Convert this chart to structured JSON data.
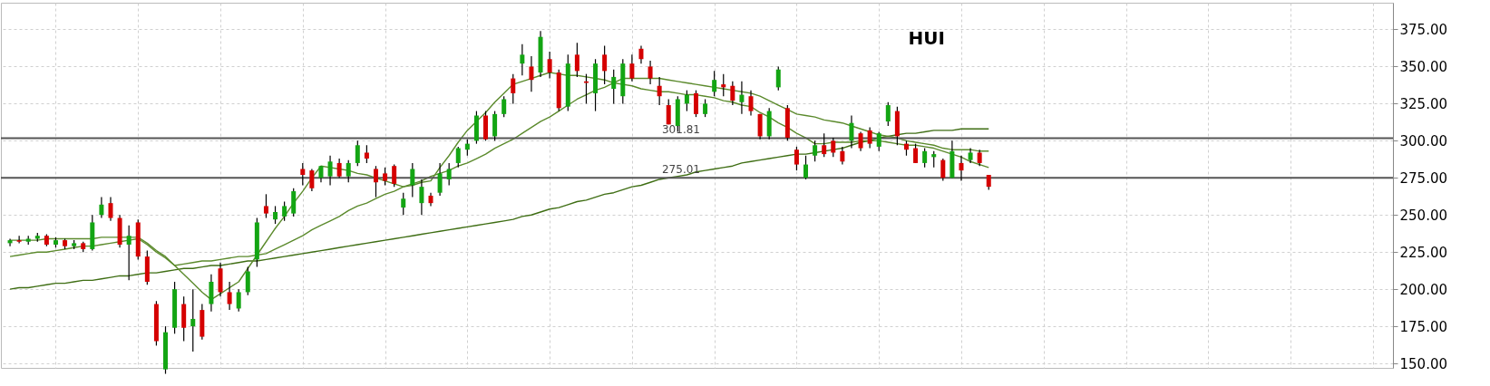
{
  "chart_data": {
    "type": "candlestick",
    "title": "HUI",
    "categories": [
      null,
      null,
      null,
      null,
      null,
      null,
      null,
      null,
      null,
      null,
      null,
      null,
      null,
      null,
      null,
      null,
      null,
      null,
      null,
      null,
      null,
      null,
      null,
      null,
      null,
      null,
      null,
      null,
      null,
      null,
      null,
      null,
      null,
      null,
      null,
      null,
      null,
      null,
      null,
      null,
      null,
      null,
      null,
      null,
      null,
      null,
      null,
      null,
      null,
      null,
      null,
      null,
      null,
      null,
      null,
      null,
      null,
      null,
      null,
      null,
      null,
      null,
      null,
      null,
      null,
      null,
      null,
      null,
      null,
      null,
      null,
      null,
      null,
      null,
      null,
      null,
      null,
      null,
      null,
      null,
      null,
      null,
      null,
      null,
      null,
      null,
      null,
      null,
      null,
      null,
      null,
      null,
      null,
      null,
      null,
      null,
      null,
      null,
      null,
      null,
      null,
      null,
      null,
      null,
      null,
      null,
      null,
      null
    ],
    "ohlc": [
      [
        231,
        234,
        229,
        233
      ],
      [
        233,
        236,
        231,
        232
      ],
      [
        232,
        236,
        230,
        234
      ],
      [
        234,
        238,
        232,
        236
      ],
      [
        236,
        237,
        229,
        230
      ],
      [
        230,
        235,
        228,
        233
      ],
      [
        233,
        234,
        227,
        229
      ],
      [
        229,
        233,
        227,
        231
      ],
      [
        231,
        232,
        225,
        227
      ],
      [
        227,
        250,
        226,
        245
      ],
      [
        250,
        262,
        248,
        257
      ],
      [
        258,
        262,
        246,
        248
      ],
      [
        248,
        250,
        228,
        230
      ],
      [
        230,
        243,
        206,
        236
      ],
      [
        245,
        247,
        220,
        222
      ],
      [
        222,
        226,
        203,
        205
      ],
      [
        190,
        192,
        162,
        165
      ],
      [
        146,
        175,
        143,
        171
      ],
      [
        174,
        205,
        170,
        200
      ],
      [
        190,
        195,
        165,
        174
      ],
      [
        175,
        200,
        158,
        180
      ],
      [
        186,
        190,
        166,
        168
      ],
      [
        190,
        210,
        185,
        205
      ],
      [
        214,
        218,
        195,
        198
      ],
      [
        198,
        205,
        186,
        190
      ],
      [
        187,
        200,
        185,
        198
      ],
      [
        198,
        215,
        196,
        212
      ],
      [
        220,
        248,
        215,
        245
      ],
      [
        256,
        264,
        248,
        251
      ],
      [
        247,
        256,
        244,
        252
      ],
      [
        249,
        259,
        246,
        256
      ],
      [
        251,
        268,
        249,
        266
      ],
      [
        281,
        285,
        270,
        277
      ],
      [
        280,
        281,
        266,
        268
      ],
      [
        275,
        283,
        272,
        283
      ],
      [
        276,
        290,
        270,
        286
      ],
      [
        285,
        288,
        275,
        276
      ],
      [
        276,
        287,
        272,
        285
      ],
      [
        285,
        300,
        283,
        297
      ],
      [
        292,
        297,
        285,
        288
      ],
      [
        281,
        283,
        262,
        272
      ],
      [
        278,
        282,
        270,
        273
      ],
      [
        283,
        284,
        269,
        271
      ],
      [
        255,
        265,
        250,
        261
      ],
      [
        270,
        285,
        262,
        281
      ],
      [
        258,
        274,
        250,
        269
      ],
      [
        263,
        265,
        256,
        258
      ],
      [
        265,
        285,
        263,
        278
      ],
      [
        274,
        285,
        270,
        281
      ],
      [
        285,
        296,
        282,
        295
      ],
      [
        294,
        301,
        290,
        298
      ],
      [
        300,
        320,
        298,
        317
      ],
      [
        317,
        320,
        300,
        301
      ],
      [
        303,
        320,
        300,
        318
      ],
      [
        318,
        330,
        316,
        328
      ],
      [
        342,
        345,
        325,
        332
      ],
      [
        352,
        365,
        344,
        358
      ],
      [
        350,
        357,
        333,
        341
      ],
      [
        346,
        374,
        343,
        370
      ],
      [
        355,
        360,
        342,
        346
      ],
      [
        346,
        348,
        320,
        322
      ],
      [
        323,
        358,
        320,
        352
      ],
      [
        358,
        366,
        343,
        347
      ],
      [
        340,
        345,
        325,
        339
      ],
      [
        332,
        355,
        320,
        352
      ],
      [
        358,
        364,
        338,
        347
      ],
      [
        335,
        348,
        325,
        343
      ],
      [
        330,
        355,
        325,
        352
      ],
      [
        352,
        358,
        340,
        342
      ],
      [
        362,
        364,
        352,
        355
      ],
      [
        350,
        354,
        338,
        342
      ],
      [
        337,
        343,
        324,
        330
      ],
      [
        324,
        328,
        311,
        311
      ],
      [
        310,
        330,
        306,
        328
      ],
      [
        325,
        334,
        320,
        331
      ],
      [
        332,
        334,
        316,
        318
      ],
      [
        318,
        328,
        316,
        325
      ],
      [
        333,
        347,
        330,
        341
      ],
      [
        338,
        345,
        330,
        336
      ],
      [
        337,
        340,
        324,
        327
      ],
      [
        326,
        340,
        318,
        331
      ],
      [
        330,
        334,
        317,
        320
      ],
      [
        318,
        318,
        301,
        303
      ],
      [
        303,
        322,
        301,
        320
      ],
      [
        336,
        350,
        334,
        348
      ],
      [
        322,
        324,
        300,
        302
      ],
      [
        294,
        296,
        280,
        284
      ],
      [
        275,
        290,
        274,
        284
      ],
      [
        290,
        300,
        286,
        297
      ],
      [
        297,
        305,
        289,
        291
      ],
      [
        300,
        302,
        289,
        292
      ],
      [
        293,
        296,
        284,
        286
      ],
      [
        300,
        317,
        295,
        312
      ],
      [
        305,
        306,
        293,
        295
      ],
      [
        307,
        309,
        295,
        298
      ],
      [
        296,
        306,
        293,
        305
      ],
      [
        313,
        326,
        310,
        324
      ],
      [
        320,
        323,
        297,
        303
      ],
      [
        298,
        300,
        290,
        294
      ],
      [
        295,
        298,
        285,
        285
      ],
      [
        285,
        295,
        282,
        293
      ],
      [
        289,
        293,
        282,
        291
      ],
      [
        287,
        288,
        273,
        275
      ],
      [
        275,
        300,
        275,
        293
      ],
      [
        285,
        290,
        273,
        280
      ],
      [
        287,
        295,
        285,
        292
      ],
      [
        292,
        294,
        283,
        285
      ],
      [
        277,
        277,
        267,
        269
      ]
    ],
    "colors": [
      "#13a513",
      "#d50000",
      "#13a513",
      "#13a513",
      "#d50000",
      "#13a513",
      "#d50000",
      "#13a513",
      "#d50000",
      "#13a513",
      "#13a513",
      "#d50000",
      "#d50000",
      "#13a513",
      "#d50000",
      "#d50000",
      "#d50000",
      "#13a513",
      "#13a513",
      "#d50000",
      "#13a513",
      "#d50000",
      "#13a513",
      "#d50000",
      "#d50000",
      "#13a513",
      "#13a513",
      "#13a513",
      "#d50000",
      "#13a513",
      "#13a513",
      "#13a513",
      "#d50000",
      "#d50000",
      "#13a513",
      "#13a513",
      "#d50000",
      "#13a513",
      "#13a513",
      "#d50000",
      "#d50000",
      "#d50000",
      "#d50000",
      "#13a513",
      "#13a513",
      "#13a513",
      "#d50000",
      "#13a513",
      "#13a513",
      "#13a513",
      "#13a513",
      "#13a513",
      "#d50000",
      "#13a513",
      "#13a513",
      "#d50000",
      "#13a513",
      "#d50000",
      "#13a513",
      "#d50000",
      "#d50000",
      "#13a513",
      "#d50000",
      "#d50000",
      "#13a513",
      "#d50000",
      "#13a513",
      "#13a513",
      "#d50000",
      "#d50000",
      "#d50000",
      "#d50000",
      "#d50000",
      "#13a513",
      "#13a513",
      "#d50000",
      "#13a513",
      "#13a513",
      "#d50000",
      "#d50000",
      "#13a513",
      "#d50000",
      "#d50000",
      "#13a513",
      "#13a513",
      "#d50000",
      "#d50000",
      "#13a513",
      "#13a513",
      "#d50000",
      "#d50000",
      "#d50000",
      "#13a513",
      "#d50000",
      "#d50000",
      "#13a513",
      "#13a513",
      "#d50000",
      "#d50000",
      "#d50000",
      "#13a513",
      "#13a513",
      "#d50000",
      "#13a513",
      "#d50000",
      "#13a513",
      "#d50000",
      "#d50000"
    ],
    "series": [
      {
        "type": "line",
        "color": "#3f6e14",
        "values": [
          200,
          201,
          201,
          202,
          203,
          204,
          204,
          205,
          206,
          206,
          207,
          208,
          209,
          209,
          210,
          211,
          211,
          212,
          213,
          214,
          214,
          215,
          216,
          216,
          217,
          218,
          219,
          219,
          220,
          221,
          222,
          223,
          224,
          225,
          226,
          227,
          228,
          229,
          230,
          231,
          232,
          233,
          234,
          235,
          236,
          237,
          238,
          239,
          240,
          241,
          242,
          243,
          244,
          245,
          246,
          247,
          249,
          250,
          252,
          254,
          255,
          257,
          259,
          260,
          262,
          264,
          265,
          267,
          269,
          270,
          272,
          274,
          275,
          276,
          277,
          279,
          280,
          281,
          282,
          283,
          285,
          286,
          287,
          288,
          289,
          290,
          291,
          291,
          292,
          293,
          294,
          295,
          297,
          299,
          300,
          302,
          303,
          304,
          305,
          305,
          306,
          307,
          307,
          307,
          308,
          308,
          308,
          308
        ]
      },
      {
        "type": "line",
        "color": "#5b8a2c",
        "values": [
          233,
          233,
          233,
          233,
          234,
          234,
          234,
          234,
          234,
          234,
          235,
          235,
          235,
          235,
          235,
          231,
          226,
          222,
          216,
          210,
          204,
          198,
          193,
          197,
          201,
          205,
          214,
          223,
          232,
          241,
          249,
          258,
          266,
          275,
          283,
          282,
          281,
          280,
          278,
          277,
          275,
          273,
          271,
          269,
          270,
          272,
          273,
          282,
          290,
          299,
          307,
          313,
          319,
          326,
          332,
          338,
          340,
          342,
          344,
          346,
          345,
          344,
          344,
          343,
          342,
          341,
          339,
          338,
          337,
          335,
          334,
          333,
          333,
          332,
          331,
          331,
          330,
          329,
          327,
          326,
          324,
          323,
          319,
          316,
          312,
          309,
          305,
          302,
          298,
          298,
          299,
          299,
          299,
          300,
          300,
          300,
          299,
          298,
          297,
          297,
          296,
          295,
          293,
          291,
          289,
          286,
          284,
          282
        ]
      },
      {
        "type": "line",
        "color": "#5b8a2c",
        "values": [
          222,
          223,
          224,
          225,
          225,
          226,
          227,
          228,
          229,
          229,
          230,
          231,
          232,
          233,
          234,
          230,
          225,
          221,
          216,
          217,
          218,
          219,
          219,
          220,
          221,
          222,
          222,
          223,
          224,
          227,
          230,
          233,
          236,
          240,
          243,
          246,
          249,
          253,
          256,
          258,
          261,
          264,
          266,
          269,
          271,
          273,
          276,
          278,
          280,
          283,
          285,
          288,
          291,
          295,
          298,
          301,
          305,
          309,
          313,
          316,
          320,
          324,
          328,
          331,
          334,
          336,
          339,
          342,
          342,
          342,
          342,
          342,
          341,
          340,
          339,
          338,
          337,
          336,
          335,
          334,
          333,
          332,
          330,
          327,
          324,
          321,
          318,
          317,
          316,
          314,
          313,
          312,
          310,
          308,
          306,
          304,
          303,
          302,
          300,
          299,
          298,
          297,
          295,
          294,
          294,
          294,
          293,
          293
        ]
      }
    ],
    "ylim": [
      147,
      393
    ],
    "yticks": [
      {
        "value": 150,
        "label": "150.00"
      },
      {
        "value": 175,
        "label": "175.00"
      },
      {
        "value": 200,
        "label": "200.00"
      },
      {
        "value": 225,
        "label": "225.00"
      },
      {
        "value": 250,
        "label": "250.00"
      },
      {
        "value": 275,
        "label": "275.00"
      },
      {
        "value": 300,
        "label": "300.00"
      },
      {
        "value": 325,
        "label": "325.00"
      },
      {
        "value": 350,
        "label": "350.00"
      },
      {
        "value": 375,
        "label": "375.00"
      }
    ],
    "grid": true,
    "ref_lines": [
      {
        "axis": "y",
        "value": 301.81,
        "label": "301.81",
        "color": "#555555"
      },
      {
        "axis": "y",
        "value": 275.01,
        "label": "275.01",
        "color": "#555555"
      }
    ]
  }
}
